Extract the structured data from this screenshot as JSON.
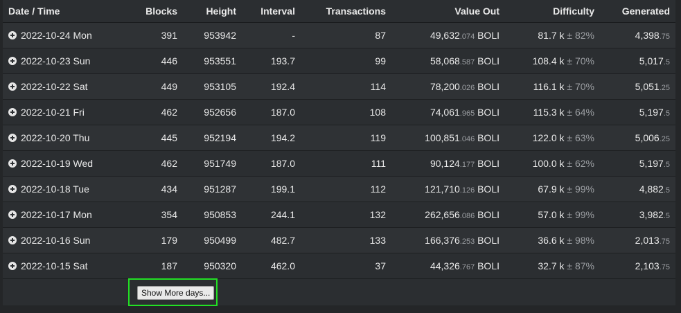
{
  "columns": [
    "Date / Time",
    "Blocks",
    "Height",
    "Interval",
    "Transactions",
    "Value Out",
    "Difficulty",
    "Generated"
  ],
  "rows": [
    {
      "date": "2022-10-24 Mon",
      "blocks": "391",
      "height": "953942",
      "interval": "-",
      "tx": "87",
      "value_int": "49,632",
      "value_dec": ".074",
      "unit": "BOLI",
      "diff": "81.7 k",
      "diff_pct": "± 82%",
      "gen_int": "4,398",
      "gen_dec": ".75"
    },
    {
      "date": "2022-10-23 Sun",
      "blocks": "446",
      "height": "953551",
      "interval": "193.7",
      "tx": "99",
      "value_int": "58,068",
      "value_dec": ".587",
      "unit": "BOLI",
      "diff": "108.4 k",
      "diff_pct": "± 70%",
      "gen_int": "5,017",
      "gen_dec": ".5"
    },
    {
      "date": "2022-10-22 Sat",
      "blocks": "449",
      "height": "953105",
      "interval": "192.4",
      "tx": "114",
      "value_int": "78,200",
      "value_dec": ".026",
      "unit": "BOLI",
      "diff": "116.1 k",
      "diff_pct": "± 70%",
      "gen_int": "5,051",
      "gen_dec": ".25"
    },
    {
      "date": "2022-10-21 Fri",
      "blocks": "462",
      "height": "952656",
      "interval": "187.0",
      "tx": "108",
      "value_int": "74,061",
      "value_dec": ".965",
      "unit": "BOLI",
      "diff": "115.3 k",
      "diff_pct": "± 64%",
      "gen_int": "5,197",
      "gen_dec": ".5"
    },
    {
      "date": "2022-10-20 Thu",
      "blocks": "445",
      "height": "952194",
      "interval": "194.2",
      "tx": "119",
      "value_int": "100,851",
      "value_dec": ".046",
      "unit": "BOLI",
      "diff": "122.0 k",
      "diff_pct": "± 63%",
      "gen_int": "5,006",
      "gen_dec": ".25"
    },
    {
      "date": "2022-10-19 Wed",
      "blocks": "462",
      "height": "951749",
      "interval": "187.0",
      "tx": "111",
      "value_int": "90,124",
      "value_dec": ".177",
      "unit": "BOLI",
      "diff": "100.0 k",
      "diff_pct": "± 62%",
      "gen_int": "5,197",
      "gen_dec": ".5"
    },
    {
      "date": "2022-10-18 Tue",
      "blocks": "434",
      "height": "951287",
      "interval": "199.1",
      "tx": "112",
      "value_int": "121,710",
      "value_dec": ".126",
      "unit": "BOLI",
      "diff": "67.9 k",
      "diff_pct": "± 99%",
      "gen_int": "4,882",
      "gen_dec": ".5"
    },
    {
      "date": "2022-10-17 Mon",
      "blocks": "354",
      "height": "950853",
      "interval": "244.1",
      "tx": "132",
      "value_int": "262,656",
      "value_dec": ".086",
      "unit": "BOLI",
      "diff": "57.0 k",
      "diff_pct": "± 99%",
      "gen_int": "3,982",
      "gen_dec": ".5"
    },
    {
      "date": "2022-10-16 Sun",
      "blocks": "179",
      "height": "950499",
      "interval": "482.7",
      "tx": "133",
      "value_int": "166,376",
      "value_dec": ".253",
      "unit": "BOLI",
      "diff": "36.6 k",
      "diff_pct": "± 98%",
      "gen_int": "2,013",
      "gen_dec": ".75"
    },
    {
      "date": "2022-10-15 Sat",
      "blocks": "187",
      "height": "950320",
      "interval": "462.0",
      "tx": "37",
      "value_int": "44,326",
      "value_dec": ".767",
      "unit": "BOLI",
      "diff": "32.7 k",
      "diff_pct": "± 87%",
      "gen_int": "2,103",
      "gen_dec": ".75"
    }
  ],
  "show_more_label": "Show More days...",
  "colors": {
    "page_bg": "#242628",
    "row_alt": "#2f3235",
    "highlight": "#22e024"
  },
  "icons": {
    "row_expand": "plus-circle-icon"
  }
}
